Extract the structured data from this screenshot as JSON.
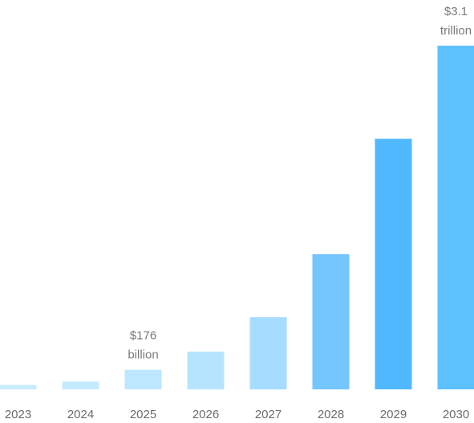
{
  "chart_data": {
    "type": "bar",
    "title": "",
    "xlabel": "",
    "ylabel": "",
    "categories": [
      "2023",
      "2024",
      "2025",
      "2026",
      "2027",
      "2028",
      "2029",
      "2030"
    ],
    "values": [
      40,
      70,
      176,
      340,
      650,
      1220,
      2260,
      3100
    ],
    "unit": "USD billion",
    "ylim": [
      0,
      3100
    ],
    "grid": false,
    "legend": "none",
    "bar_colors": [
      "#c9ecfd",
      "#c4eafe",
      "#bde7ff",
      "#b6e4ff",
      "#a6dcff",
      "#74c6ff",
      "#4fb8ff",
      "#5ec1ff"
    ],
    "annotations": [
      {
        "category": "2025",
        "lines": [
          "$176",
          "billion"
        ]
      },
      {
        "category": "2030",
        "lines": [
          "$3.1",
          "trillion"
        ]
      }
    ]
  }
}
